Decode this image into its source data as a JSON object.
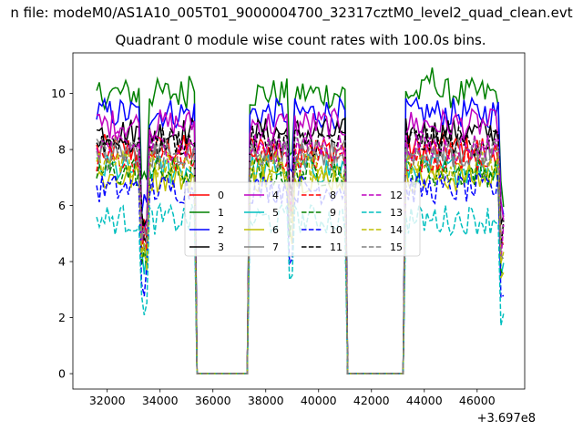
{
  "chart_data": {
    "type": "line",
    "suptitle": "n file: modeM0/AS1A10_005T01_9000004700_32317cztM0_level2_quad_clean.evt",
    "title": "Quadrant 0 module wise count rates with 100.0s bins.",
    "xlabel": "",
    "ylabel": "",
    "x_offset_text": "+3.697e8",
    "xlim": [
      30700,
      47800
    ],
    "ylim": [
      -0.55,
      11.45
    ],
    "xticks": [
      32000,
      34000,
      36000,
      38000,
      40000,
      42000,
      44000,
      46000
    ],
    "xtick_labels": [
      "32000",
      "34000",
      "36000",
      "38000",
      "40000",
      "42000",
      "44000",
      "46000"
    ],
    "yticks": [
      0,
      2,
      4,
      6,
      8,
      10
    ],
    "ytick_labels": [
      "0",
      "2",
      "4",
      "6",
      "8",
      "10"
    ],
    "bin_seconds": 100,
    "x_start": 31600,
    "x_end": 47000,
    "gaps": [
      [
        35400,
        37300
      ],
      [
        41100,
        43200
      ]
    ],
    "legend_placement": "center",
    "series": [
      {
        "name": "0",
        "color": "#ff0000",
        "dash": "solid",
        "level": 8.0
      },
      {
        "name": "1",
        "color": "#008000",
        "dash": "solid",
        "level": 10.0
      },
      {
        "name": "2",
        "color": "#0000ff",
        "dash": "solid",
        "level": 9.3
      },
      {
        "name": "3",
        "color": "#000000",
        "dash": "solid",
        "level": 8.6
      },
      {
        "name": "4",
        "color": "#bf00bf",
        "dash": "solid",
        "level": 8.9
      },
      {
        "name": "5",
        "color": "#00bfbf",
        "dash": "solid",
        "level": 7.3
      },
      {
        "name": "6",
        "color": "#bfbf00",
        "dash": "solid",
        "level": 7.0
      },
      {
        "name": "7",
        "color": "#808080",
        "dash": "solid",
        "level": 7.9
      },
      {
        "name": "8",
        "color": "#ff0000",
        "dash": "dashed",
        "level": 7.7
      },
      {
        "name": "9",
        "color": "#008000",
        "dash": "dashed",
        "level": 7.2
      },
      {
        "name": "10",
        "color": "#0000ff",
        "dash": "dashed",
        "level": 6.6
      },
      {
        "name": "11",
        "color": "#000000",
        "dash": "dashed",
        "level": 8.3
      },
      {
        "name": "12",
        "color": "#bf00bf",
        "dash": "dashed",
        "level": 8.1
      },
      {
        "name": "13",
        "color": "#00bfbf",
        "dash": "dashed",
        "level": 5.5
      },
      {
        "name": "14",
        "color": "#bfbf00",
        "dash": "dashed",
        "level": 7.4
      },
      {
        "name": "15",
        "color": "#808080",
        "dash": "dashed",
        "level": 7.8
      }
    ]
  }
}
